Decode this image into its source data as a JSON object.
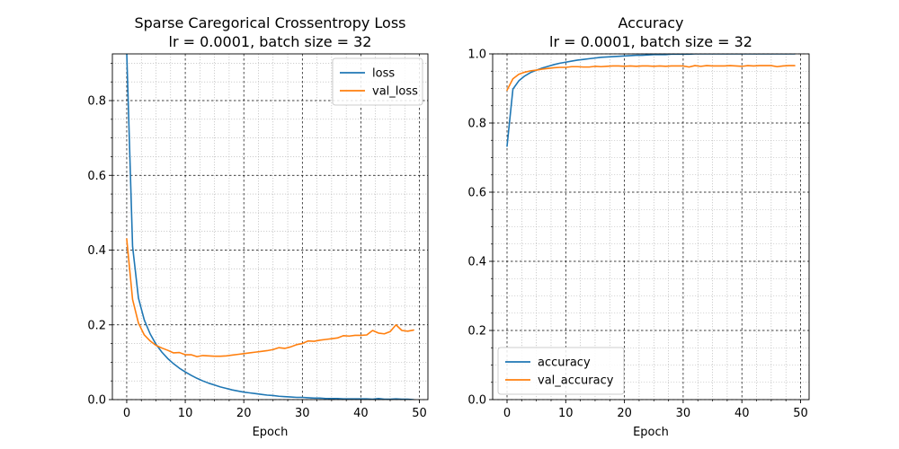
{
  "chart_data": [
    {
      "type": "line",
      "title": "Sparse Caregorical Crossentropy Loss",
      "subtitle": "lr = 0.0001, batch size = 32",
      "xlabel": "Epoch",
      "ylabel": "",
      "xlim": [
        -2.45,
        51.45
      ],
      "ylim": [
        0,
        0.925
      ],
      "xticks": [
        0,
        10,
        20,
        30,
        40,
        50
      ],
      "yticks": [
        0.0,
        0.2,
        0.4,
        0.6,
        0.8
      ],
      "ytick_labels": [
        "0.0",
        "0.2",
        "0.4",
        "0.6",
        "0.8"
      ],
      "grid": "major and minor",
      "legend_placement": "top-right",
      "x": [
        0,
        1,
        2,
        3,
        4,
        5,
        6,
        7,
        8,
        9,
        10,
        11,
        12,
        13,
        14,
        15,
        16,
        17,
        18,
        19,
        20,
        21,
        22,
        23,
        24,
        25,
        26,
        27,
        28,
        29,
        30,
        31,
        32,
        33,
        34,
        35,
        36,
        37,
        38,
        39,
        40,
        41,
        42,
        43,
        44,
        45,
        46,
        47,
        48,
        49
      ],
      "series": [
        {
          "name": "loss",
          "color": "#1f77b4",
          "values": [
            0.93,
            0.41,
            0.272,
            0.213,
            0.176,
            0.148,
            0.127,
            0.11,
            0.096,
            0.084,
            0.074,
            0.065,
            0.057,
            0.05,
            0.044,
            0.039,
            0.034,
            0.03,
            0.026,
            0.023,
            0.02,
            0.018,
            0.016,
            0.014,
            0.012,
            0.011,
            0.009,
            0.008,
            0.007,
            0.006,
            0.006,
            0.005,
            0.004,
            0.004,
            0.003,
            0.003,
            0.003,
            0.002,
            0.002,
            0.002,
            0.002,
            0.002,
            0.001,
            0.003,
            0.001,
            0.001,
            0.002,
            0.001,
            0.001,
            0.0
          ]
        },
        {
          "name": "val_loss",
          "color": "#ff7f0e",
          "values": [
            0.43,
            0.268,
            0.205,
            0.173,
            0.157,
            0.145,
            0.138,
            0.132,
            0.125,
            0.126,
            0.12,
            0.12,
            0.115,
            0.118,
            0.117,
            0.116,
            0.116,
            0.117,
            0.119,
            0.121,
            0.123,
            0.125,
            0.127,
            0.129,
            0.131,
            0.134,
            0.139,
            0.137,
            0.141,
            0.147,
            0.15,
            0.157,
            0.156,
            0.159,
            0.161,
            0.163,
            0.165,
            0.171,
            0.17,
            0.172,
            0.172,
            0.173,
            0.185,
            0.178,
            0.176,
            0.182,
            0.2,
            0.185,
            0.183,
            0.186
          ]
        }
      ]
    },
    {
      "type": "line",
      "title": "Accuracy",
      "subtitle": "lr = 0.0001, batch size = 32",
      "xlabel": "Epoch",
      "ylabel": "",
      "xlim": [
        -2.45,
        51.45
      ],
      "ylim": [
        0,
        1.0
      ],
      "xticks": [
        0,
        10,
        20,
        30,
        40,
        50
      ],
      "yticks": [
        0.0,
        0.2,
        0.4,
        0.6,
        0.8,
        1.0
      ],
      "ytick_labels": [
        "0.0",
        "0.2",
        "0.4",
        "0.6",
        "0.8",
        "1.0"
      ],
      "grid": "major and minor",
      "legend_placement": "bottom-left",
      "x": [
        0,
        1,
        2,
        3,
        4,
        5,
        6,
        7,
        8,
        9,
        10,
        11,
        12,
        13,
        14,
        15,
        16,
        17,
        18,
        19,
        20,
        21,
        22,
        23,
        24,
        25,
        26,
        27,
        28,
        29,
        30,
        31,
        32,
        33,
        34,
        35,
        36,
        37,
        38,
        39,
        40,
        41,
        42,
        43,
        44,
        45,
        46,
        47,
        48,
        49
      ],
      "series": [
        {
          "name": "accuracy",
          "color": "#1f77b4",
          "values": [
            0.733,
            0.898,
            0.922,
            0.936,
            0.946,
            0.953,
            0.959,
            0.964,
            0.969,
            0.973,
            0.976,
            0.979,
            0.982,
            0.984,
            0.986,
            0.988,
            0.99,
            0.991,
            0.992,
            0.993,
            0.994,
            0.995,
            0.996,
            0.996,
            0.997,
            0.998,
            0.998,
            0.998,
            0.999,
            0.999,
            0.999,
            0.999,
            1.0,
            1.0,
            1.0,
            1.0,
            1.0,
            1.0,
            1.0,
            1.0,
            1.0,
            1.0,
            1.0,
            1.0,
            1.0,
            1.0,
            1.0,
            1.0,
            1.0,
            1.0
          ]
        },
        {
          "name": "val_accuracy",
          "color": "#ff7f0e",
          "values": [
            0.895,
            0.928,
            0.941,
            0.947,
            0.951,
            0.953,
            0.956,
            0.958,
            0.96,
            0.961,
            0.961,
            0.963,
            0.963,
            0.962,
            0.962,
            0.964,
            0.963,
            0.964,
            0.965,
            0.965,
            0.964,
            0.965,
            0.964,
            0.965,
            0.965,
            0.964,
            0.965,
            0.964,
            0.965,
            0.965,
            0.965,
            0.962,
            0.966,
            0.964,
            0.966,
            0.965,
            0.965,
            0.965,
            0.966,
            0.965,
            0.964,
            0.966,
            0.965,
            0.966,
            0.966,
            0.966,
            0.963,
            0.965,
            0.966,
            0.966
          ]
        }
      ]
    }
  ]
}
